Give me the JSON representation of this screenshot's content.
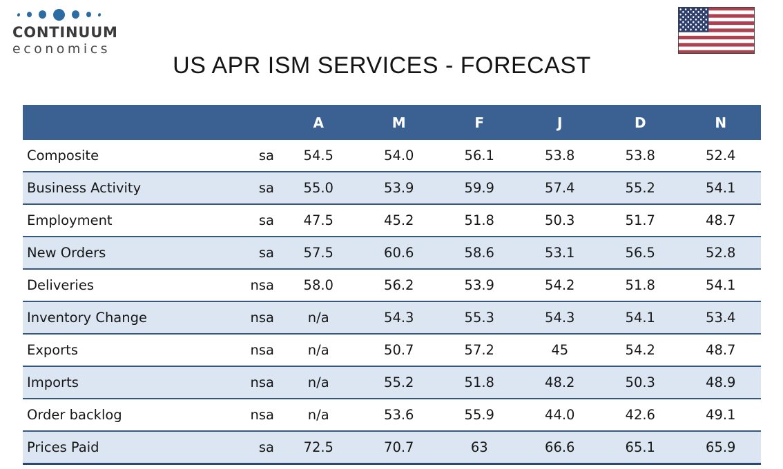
{
  "logo": {
    "name": "CONTINUUM",
    "tagline": "economics",
    "dot_color": "#2d6ca3"
  },
  "title": "US APR ISM SERVICES - FORECAST",
  "flag": {
    "country": "United States",
    "stripe_red": "#ad4150",
    "canton_blue": "#2e3f6e"
  },
  "table": {
    "columns": [
      "A",
      "M",
      "F",
      "J",
      "D",
      "N"
    ],
    "rows": [
      {
        "label": "Composite",
        "adj": "sa",
        "values": [
          "54.5",
          "54.0",
          "56.1",
          "53.8",
          "53.8",
          "52.4"
        ]
      },
      {
        "label": "Business Activity",
        "adj": "sa",
        "values": [
          "55.0",
          "53.9",
          "59.9",
          "57.4",
          "55.2",
          "54.1"
        ]
      },
      {
        "label": "Employment",
        "adj": "sa",
        "values": [
          "47.5",
          "45.2",
          "51.8",
          "50.3",
          "51.7",
          "48.7"
        ]
      },
      {
        "label": "New Orders",
        "adj": "sa",
        "values": [
          "57.5",
          "60.6",
          "58.6",
          "53.1",
          "56.5",
          "52.8"
        ]
      },
      {
        "label": "Deliveries",
        "adj": "nsa",
        "values": [
          "58.0",
          "56.2",
          "53.9",
          "54.2",
          "51.8",
          "54.1"
        ]
      },
      {
        "label": "Inventory Change",
        "adj": "nsa",
        "values": [
          "n/a",
          "54.3",
          "55.3",
          "54.3",
          "54.1",
          "53.4"
        ]
      },
      {
        "label": "Exports",
        "adj": "nsa",
        "values": [
          "n/a",
          "50.7",
          "57.2",
          "45",
          "54.2",
          "48.7"
        ]
      },
      {
        "label": "Imports",
        "adj": "nsa",
        "values": [
          "n/a",
          "55.2",
          "51.8",
          "48.2",
          "50.3",
          "48.9"
        ]
      },
      {
        "label": "Order backlog",
        "adj": "nsa",
        "values": [
          "n/a",
          "53.6",
          "55.9",
          "44.0",
          "42.6",
          "49.1"
        ]
      },
      {
        "label": "Prices Paid",
        "adj": "sa",
        "values": [
          "72.5",
          "70.7",
          "63",
          "66.6",
          "65.1",
          "65.9"
        ]
      }
    ],
    "colors": {
      "header_bg": "#3a6191",
      "header_text": "#ffffff",
      "row_bg": "#ffffff",
      "row_alt_bg": "#dce6f2",
      "row_border": "#35577e",
      "bottom_border": "#2b4871",
      "text": "#161616"
    }
  }
}
